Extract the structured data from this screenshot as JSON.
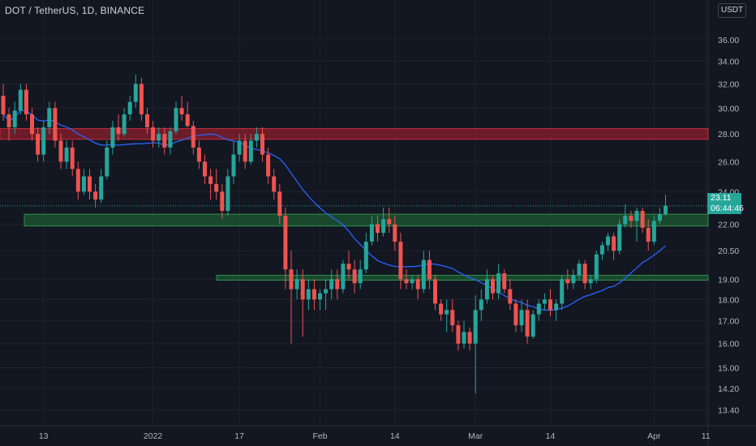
{
  "header": {
    "title": "DOT / TetherUS, 1D, BINANCE"
  },
  "price_scale": {
    "currency": "USDT",
    "current_price": "23.11",
    "countdown": "06:44:46"
  },
  "colors": {
    "background": "#131722",
    "up": "#26a69a",
    "down": "#ef5350",
    "ma": "#2962ff",
    "resistance_zone": "#8b1e2b",
    "support_zone": "#1e5a32",
    "grid": "#1e222d",
    "text": "#b2b5be"
  },
  "chart_data": {
    "type": "candlestick",
    "title": "DOT / TetherUS, 1D, BINANCE",
    "scale": "log",
    "ylim": [
      12.85,
      38.5
    ],
    "y_ticks": [
      "13.40",
      "14.20",
      "15.00",
      "16.00",
      "17.00",
      "18.00",
      "19.00",
      "20.50",
      "22.00",
      "24.00",
      "26.00",
      "28.00",
      "30.00",
      "32.00",
      "34.00",
      "36.00"
    ],
    "x_ticks": [
      "13",
      "2022",
      "17",
      "Feb",
      "14",
      "Mar",
      "14",
      "Apr",
      "11"
    ],
    "zones": [
      {
        "name": "resistance",
        "low": 27.6,
        "high": 28.4
      },
      {
        "name": "support-upper",
        "low": 21.9,
        "high": 22.6
      },
      {
        "name": "support-lower",
        "low": 18.95,
        "high": 19.2
      }
    ],
    "candles": [
      [
        31.0,
        32.0,
        29.0,
        29.5
      ],
      [
        29.5,
        30.0,
        27.5,
        28.5
      ],
      [
        28.5,
        30.5,
        28.0,
        29.8
      ],
      [
        29.8,
        32.0,
        29.5,
        31.5
      ],
      [
        31.5,
        32.0,
        29.0,
        29.5
      ],
      [
        29.5,
        30.0,
        27.5,
        28.0
      ],
      [
        28.0,
        28.5,
        26.0,
        26.5
      ],
      [
        26.5,
        29.0,
        26.0,
        28.5
      ],
      [
        28.5,
        30.5,
        28.0,
        30.0
      ],
      [
        30.0,
        30.5,
        27.0,
        27.5
      ],
      [
        27.5,
        28.0,
        25.5,
        26.0
      ],
      [
        26.0,
        27.5,
        25.5,
        27.0
      ],
      [
        27.0,
        27.5,
        25.0,
        25.5
      ],
      [
        25.5,
        26.0,
        23.5,
        24.0
      ],
      [
        24.0,
        25.5,
        23.8,
        25.0
      ],
      [
        25.0,
        25.5,
        23.5,
        24.0
      ],
      [
        24.0,
        24.5,
        23.0,
        23.5
      ],
      [
        23.5,
        25.5,
        23.3,
        25.0
      ],
      [
        25.0,
        27.5,
        24.8,
        27.0
      ],
      [
        27.0,
        29.0,
        26.5,
        28.5
      ],
      [
        28.5,
        29.5,
        27.5,
        28.0
      ],
      [
        28.0,
        30.0,
        27.8,
        29.5
      ],
      [
        29.5,
        31.0,
        29.0,
        30.5
      ],
      [
        30.5,
        32.8,
        30.0,
        32.0
      ],
      [
        32.0,
        32.5,
        29.0,
        29.5
      ],
      [
        29.5,
        30.0,
        28.0,
        28.5
      ],
      [
        28.5,
        29.0,
        27.0,
        27.5
      ],
      [
        27.5,
        28.5,
        27.0,
        28.0
      ],
      [
        28.0,
        28.5,
        26.5,
        27.0
      ],
      [
        27.0,
        28.5,
        26.5,
        28.2
      ],
      [
        28.2,
        30.5,
        28.0,
        30.0
      ],
      [
        30.0,
        31.0,
        29.0,
        29.5
      ],
      [
        29.5,
        30.5,
        28.5,
        28.6
      ],
      [
        28.6,
        29.0,
        26.5,
        27.0
      ],
      [
        27.0,
        27.5,
        25.5,
        26.0
      ],
      [
        26.0,
        26.5,
        24.5,
        25.0
      ],
      [
        25.0,
        25.5,
        23.5,
        24.5
      ],
      [
        24.5,
        25.5,
        23.5,
        24.0
      ],
      [
        24.0,
        24.5,
        22.3,
        22.8
      ],
      [
        22.8,
        25.5,
        22.5,
        25.0
      ],
      [
        25.0,
        27.5,
        24.5,
        26.5
      ],
      [
        26.5,
        28.0,
        26.0,
        27.5
      ],
      [
        27.5,
        28.0,
        25.5,
        26.0
      ],
      [
        26.0,
        28.0,
        25.8,
        27.5
      ],
      [
        27.5,
        28.5,
        27.0,
        28.0
      ],
      [
        28.0,
        28.5,
        26.0,
        26.5
      ],
      [
        26.5,
        27.0,
        24.5,
        25.0
      ],
      [
        25.0,
        25.5,
        23.5,
        24.0
      ],
      [
        24.0,
        24.5,
        22.0,
        22.5
      ],
      [
        22.5,
        23.0,
        18.5,
        19.5
      ],
      [
        19.5,
        20.5,
        16.0,
        18.5
      ],
      [
        18.5,
        19.5,
        18.0,
        19.0
      ],
      [
        19.0,
        19.5,
        16.3,
        18.0
      ],
      [
        18.0,
        19.0,
        17.5,
        18.5
      ],
      [
        18.5,
        19.0,
        17.5,
        18.0
      ],
      [
        18.0,
        18.5,
        17.5,
        18.3
      ],
      [
        18.3,
        19.0,
        17.5,
        18.5
      ],
      [
        18.5,
        19.5,
        18.0,
        19.0
      ],
      [
        19.0,
        19.5,
        18.0,
        18.5
      ],
      [
        18.5,
        20.0,
        18.3,
        19.8
      ],
      [
        19.8,
        20.5,
        19.0,
        19.5
      ],
      [
        19.5,
        20.0,
        18.3,
        18.8
      ],
      [
        18.8,
        20.0,
        18.5,
        19.5
      ],
      [
        19.5,
        21.5,
        19.3,
        21.0
      ],
      [
        21.0,
        22.5,
        20.8,
        22.0
      ],
      [
        22.0,
        22.5,
        21.0,
        21.5
      ],
      [
        21.5,
        23.0,
        21.3,
        22.3
      ],
      [
        22.3,
        23.0,
        21.5,
        22.0
      ],
      [
        22.0,
        22.5,
        20.5,
        21.0
      ],
      [
        21.0,
        21.5,
        18.5,
        19.0
      ],
      [
        19.0,
        19.5,
        18.5,
        18.8
      ],
      [
        18.8,
        19.2,
        18.5,
        19.0
      ],
      [
        19.0,
        19.2,
        18.0,
        18.5
      ],
      [
        18.5,
        20.5,
        18.3,
        20.0
      ],
      [
        20.0,
        20.5,
        18.5,
        19.0
      ],
      [
        19.0,
        19.2,
        17.5,
        17.8
      ],
      [
        17.8,
        18.0,
        17.0,
        17.3
      ],
      [
        17.3,
        18.0,
        16.5,
        17.5
      ],
      [
        17.5,
        18.0,
        16.5,
        16.8
      ],
      [
        16.8,
        17.0,
        15.7,
        16.0
      ],
      [
        16.0,
        17.0,
        15.8,
        16.5
      ],
      [
        16.5,
        16.7,
        15.7,
        16.0
      ],
      [
        16.0,
        18.2,
        14.0,
        17.5
      ],
      [
        17.5,
        18.5,
        17.0,
        18.0
      ],
      [
        18.0,
        19.5,
        17.8,
        19.0
      ],
      [
        19.0,
        19.2,
        18.0,
        18.3
      ],
      [
        18.3,
        19.8,
        18.0,
        19.3
      ],
      [
        19.3,
        19.5,
        18.3,
        18.5
      ],
      [
        18.5,
        19.0,
        17.5,
        17.8
      ],
      [
        17.8,
        18.0,
        16.5,
        16.8
      ],
      [
        16.8,
        18.0,
        16.5,
        17.5
      ],
      [
        17.5,
        18.0,
        16.0,
        16.3
      ],
      [
        16.3,
        17.5,
        16.2,
        17.3
      ],
      [
        17.3,
        18.0,
        17.0,
        17.8
      ],
      [
        17.8,
        18.3,
        17.5,
        18.0
      ],
      [
        18.0,
        18.5,
        17.2,
        17.5
      ],
      [
        17.5,
        18.0,
        17.0,
        17.8
      ],
      [
        17.8,
        19.2,
        17.5,
        19.0
      ],
      [
        19.0,
        19.5,
        18.5,
        18.8
      ],
      [
        18.8,
        19.5,
        18.5,
        19.2
      ],
      [
        19.2,
        20.0,
        19.0,
        19.8
      ],
      [
        19.8,
        20.0,
        18.5,
        18.8
      ],
      [
        18.8,
        19.2,
        18.5,
        19.0
      ],
      [
        19.0,
        20.5,
        18.8,
        20.3
      ],
      [
        20.3,
        21.0,
        20.0,
        20.8
      ],
      [
        20.8,
        21.5,
        20.5,
        21.3
      ],
      [
        21.3,
        21.5,
        20.0,
        20.5
      ],
      [
        20.5,
        22.3,
        20.3,
        22.0
      ],
      [
        22.0,
        23.2,
        21.8,
        22.5
      ],
      [
        22.5,
        22.8,
        21.8,
        22.2
      ],
      [
        22.2,
        23.0,
        21.0,
        22.8
      ],
      [
        22.8,
        23.0,
        21.5,
        21.8
      ],
      [
        21.8,
        22.3,
        20.5,
        21.0
      ],
      [
        21.0,
        22.5,
        20.8,
        22.2
      ],
      [
        22.2,
        23.0,
        22.0,
        22.6
      ],
      [
        22.6,
        23.8,
        22.5,
        23.11
      ]
    ]
  }
}
